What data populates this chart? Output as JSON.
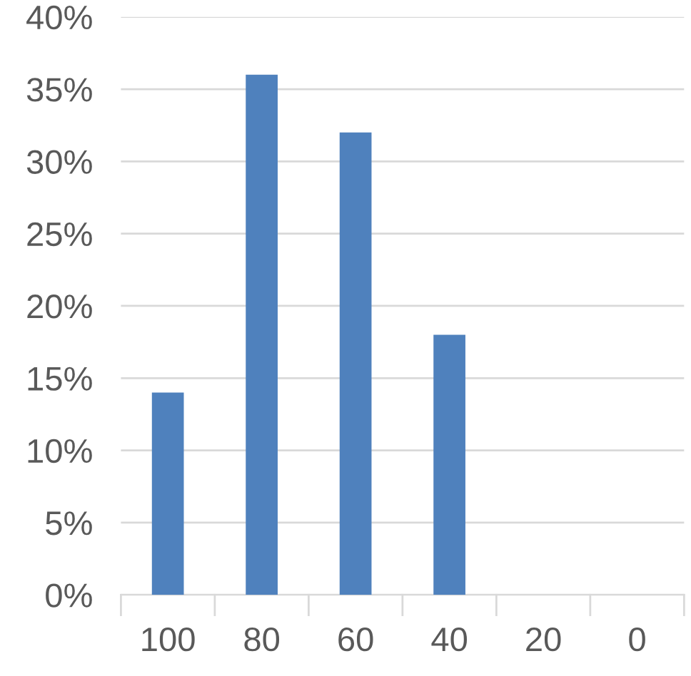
{
  "chart_data": {
    "type": "bar",
    "categories": [
      "100",
      "80",
      "60",
      "40",
      "20",
      "0"
    ],
    "values": [
      14,
      36,
      32,
      18,
      0,
      0
    ],
    "color": "#4f81bd",
    "ylim": [
      0,
      40
    ],
    "yticks": [
      {
        "value": 0,
        "label": "0%"
      },
      {
        "value": 5,
        "label": "5%"
      },
      {
        "value": 10,
        "label": "10%"
      },
      {
        "value": 15,
        "label": "15%"
      },
      {
        "value": 20,
        "label": "20%"
      },
      {
        "value": 25,
        "label": "25%"
      },
      {
        "value": 30,
        "label": "30%"
      },
      {
        "value": 35,
        "label": "35%"
      },
      {
        "value": 40,
        "label": "40%"
      }
    ],
    "grid": "y"
  }
}
